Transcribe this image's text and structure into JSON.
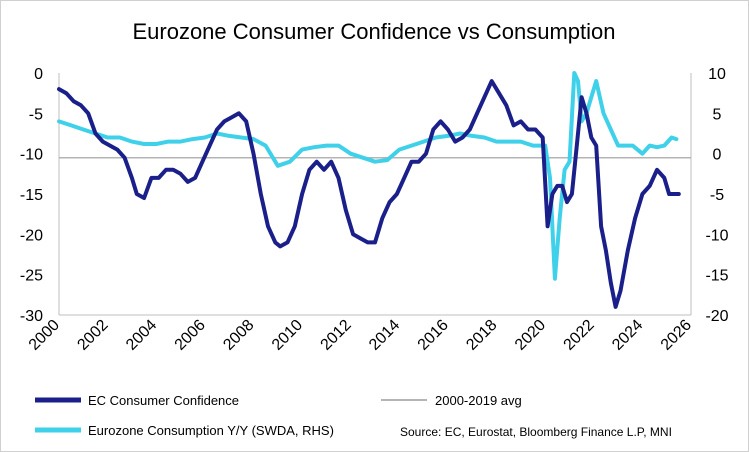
{
  "chart_data": {
    "type": "line",
    "title": "Eurozone Consumer Confidence vs Consumption",
    "source": "Source: EC, Eurostat, Bloomberg Finance L.P, MNI",
    "x_ticks": [
      "2000",
      "2002",
      "2004",
      "2006",
      "2008",
      "2010",
      "2012",
      "2014",
      "2016",
      "2018",
      "2020",
      "2022",
      "2024",
      "2026"
    ],
    "xlim": [
      2000,
      2026
    ],
    "left_axis": {
      "ticks": [
        "0",
        "-5",
        "-10",
        "-15",
        "-20",
        "-25",
        "-30"
      ],
      "ylim": [
        -30,
        0
      ]
    },
    "right_axis": {
      "ticks": [
        "10",
        "5",
        "0",
        "-5",
        "-10",
        "-15",
        "-20"
      ],
      "ylim": [
        -20,
        10
      ]
    },
    "colors": {
      "confidence": "#1a1f8a",
      "consumption": "#3fd0ea",
      "avg": "#b4b4b4"
    },
    "series": [
      {
        "name": "EC Consumer Confidence",
        "axis": "left",
        "x": [
          2000.0,
          2000.3,
          2000.6,
          2000.9,
          2001.2,
          2001.5,
          2001.8,
          2002.1,
          2002.4,
          2002.7,
          2003.0,
          2003.2,
          2003.5,
          2003.8,
          2004.1,
          2004.4,
          2004.7,
          2005.0,
          2005.3,
          2005.6,
          2005.9,
          2006.2,
          2006.5,
          2006.8,
          2007.1,
          2007.4,
          2007.7,
          2008.0,
          2008.3,
          2008.6,
          2008.9,
          2009.1,
          2009.4,
          2009.7,
          2010.0,
          2010.3,
          2010.6,
          2010.9,
          2011.2,
          2011.5,
          2011.8,
          2012.1,
          2012.4,
          2012.7,
          2013.0,
          2013.3,
          2013.6,
          2013.9,
          2014.2,
          2014.5,
          2014.8,
          2015.1,
          2015.4,
          2015.7,
          2016.0,
          2016.3,
          2016.6,
          2016.9,
          2017.2,
          2017.5,
          2017.8,
          2018.1,
          2018.4,
          2018.7,
          2019.0,
          2019.3,
          2019.6,
          2019.9,
          2020.1,
          2020.3,
          2020.5,
          2020.7,
          2020.9,
          2021.1,
          2021.3,
          2021.5,
          2021.7,
          2021.9,
          2022.1,
          2022.3,
          2022.5,
          2022.7,
          2022.9,
          2023.1,
          2023.4,
          2023.7,
          2024.0,
          2024.3,
          2024.6,
          2024.9,
          2025.1,
          2025.3,
          2025.5
        ],
        "y": [
          -2,
          -2.5,
          -3.5,
          -4,
          -5,
          -7.5,
          -8.5,
          -9,
          -9.5,
          -10.5,
          -13,
          -15,
          -15.5,
          -13,
          -13,
          -12,
          -12,
          -12.5,
          -13.5,
          -13,
          -11,
          -9,
          -7,
          -6,
          -5.5,
          -5,
          -6,
          -10,
          -15,
          -19,
          -21,
          -21.5,
          -21,
          -19,
          -15,
          -12,
          -11,
          -12,
          -11,
          -13,
          -17,
          -20,
          -20.5,
          -21,
          -21,
          -18,
          -16,
          -15,
          -13,
          -11,
          -11,
          -10,
          -7,
          -6,
          -7,
          -8.5,
          -8,
          -7,
          -5,
          -3,
          -1,
          -2.5,
          -4,
          -6.5,
          -6,
          -7,
          -7,
          -8,
          -19,
          -15,
          -14,
          -14,
          -16,
          -15,
          -9,
          -3,
          -5,
          -8,
          -9,
          -19,
          -22,
          -26,
          -29,
          -27,
          -22,
          -18,
          -15,
          -14,
          -12,
          -13,
          -15,
          -15,
          -15
        ]
      },
      {
        "name": "Eurozone Consumption Y/Y (SWDA, RHS)",
        "axis": "right",
        "x": [
          2000.0,
          2000.5,
          2001.0,
          2001.5,
          2002.0,
          2002.5,
          2003.0,
          2003.5,
          2004.0,
          2004.5,
          2005.0,
          2005.5,
          2006.0,
          2006.5,
          2007.0,
          2007.5,
          2008.0,
          2008.5,
          2009.0,
          2009.5,
          2010.0,
          2010.5,
          2011.0,
          2011.5,
          2012.0,
          2012.5,
          2013.0,
          2013.5,
          2014.0,
          2014.5,
          2015.0,
          2015.5,
          2016.0,
          2016.5,
          2017.0,
          2017.5,
          2018.0,
          2018.5,
          2019.0,
          2019.5,
          2020.0,
          2020.2,
          2020.4,
          2020.6,
          2020.8,
          2021.0,
          2021.2,
          2021.35,
          2021.5,
          2021.7,
          2021.9,
          2022.1,
          2022.4,
          2022.7,
          2023.0,
          2023.3,
          2023.6,
          2024.0,
          2024.3,
          2024.6,
          2024.9,
          2025.2,
          2025.4
        ],
        "y": [
          4,
          3.5,
          3,
          2.5,
          2,
          2,
          1.5,
          1.2,
          1.2,
          1.5,
          1.5,
          1.8,
          2,
          2.5,
          2.2,
          2,
          1.8,
          1,
          -1.5,
          -1,
          0.5,
          0.8,
          1,
          1,
          0,
          -0.5,
          -1,
          -0.8,
          0.5,
          1,
          1.5,
          2,
          2.2,
          2.5,
          2.2,
          2,
          1.5,
          1.5,
          1.5,
          1,
          1,
          -3,
          -15.5,
          -8,
          -2,
          -1,
          10,
          9,
          4,
          5,
          7,
          9,
          5,
          3,
          1,
          1,
          1,
          0,
          1,
          0.8,
          1,
          2,
          1.8
        ]
      },
      {
        "name": "2000-2019 avg",
        "axis": "left",
        "value": -10.5
      }
    ]
  }
}
